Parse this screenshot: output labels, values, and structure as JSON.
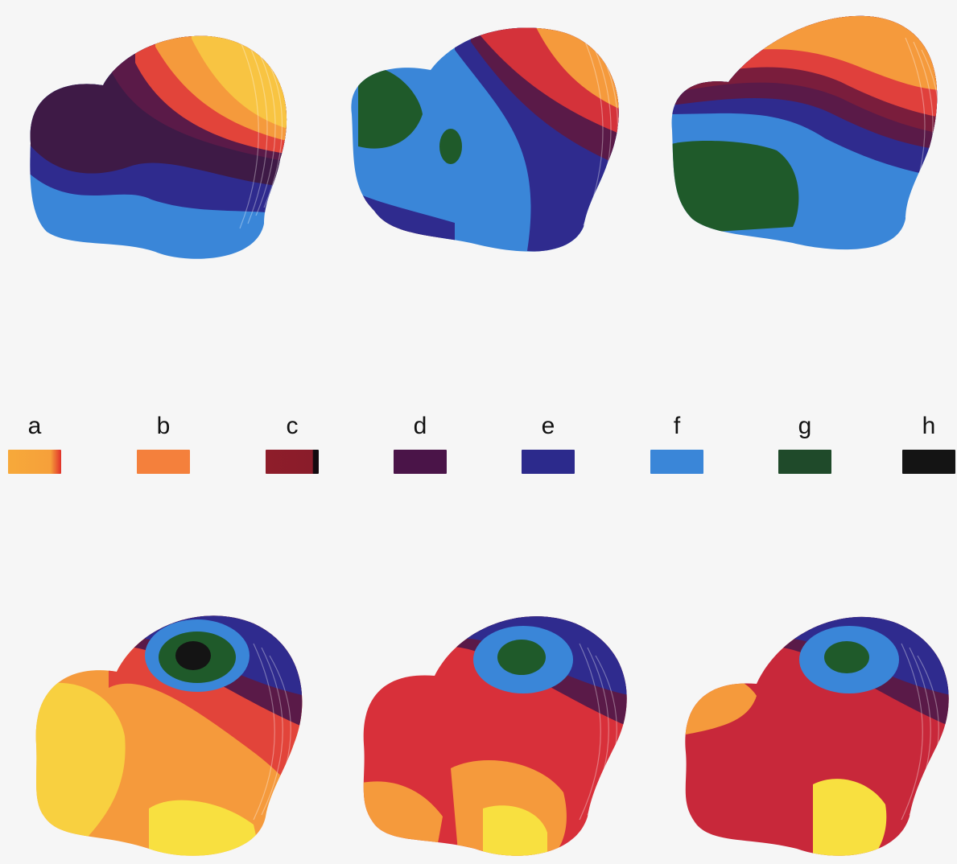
{
  "legend": {
    "items": [
      {
        "label": "a",
        "color": "#f7a93a",
        "edge": "#e0302a"
      },
      {
        "label": "b",
        "color": "#f4803c",
        "edge": "#f0743a"
      },
      {
        "label": "c",
        "color": "#8e1d2a",
        "edge": "#140a10"
      },
      {
        "label": "d",
        "color": "#4a1448",
        "edge": "#3a0e3a"
      },
      {
        "label": "e",
        "color": "#2c2a8c",
        "edge": "#22216f"
      },
      {
        "label": "f",
        "color": "#3a86d8",
        "edge": "#3a86d8"
      },
      {
        "label": "g",
        "color": "#1f4a2a",
        "edge": "#183d22"
      },
      {
        "label": "h",
        "color": "#141414",
        "edge": "#0c0c0c"
      }
    ]
  },
  "surfaces": [
    {
      "id": "top-1",
      "band_colors": [
        "#f8d040",
        "#f59a3c",
        "#e2443a",
        "#5a1a48",
        "#2f2b8e",
        "#3a86d8"
      ]
    },
    {
      "id": "top-2",
      "band_colors": [
        "#f59a3c",
        "#d4323a",
        "#5a1a48",
        "#2f2b8e",
        "#3a86d8",
        "#1f5a2a"
      ]
    },
    {
      "id": "top-3",
      "band_colors": [
        "#f59a3c",
        "#e0403c",
        "#7a1d3c",
        "#3a2a8e",
        "#3a86d8",
        "#1f5a2a"
      ]
    },
    {
      "id": "bottom-1",
      "band_colors": [
        "#f8e040",
        "#f59a3c",
        "#e2443a",
        "#5a1a48",
        "#2f2b8e",
        "#3a86d8",
        "#1f5a2a"
      ]
    },
    {
      "id": "bottom-2",
      "band_colors": [
        "#f8e040",
        "#f59a3c",
        "#d8303a",
        "#5a1a48",
        "#2f2b8e",
        "#3a86d8",
        "#1f5a2a"
      ]
    },
    {
      "id": "bottom-3",
      "band_colors": [
        "#f8e040",
        "#f59a3c",
        "#c8283a",
        "#5a1a48",
        "#2f2b8e",
        "#3a86d8",
        "#1f5a2a"
      ]
    }
  ]
}
